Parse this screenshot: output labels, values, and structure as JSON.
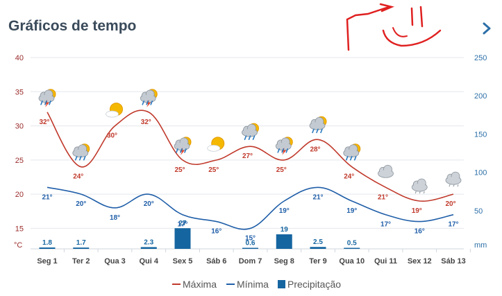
{
  "header": {
    "title": "Gráficos de tempo",
    "next_icon": "chevron-right-icon"
  },
  "colors": {
    "max": "#c0392b",
    "min": "#1f5ea8",
    "precip": "#1565a0",
    "axis_left": "#9b2b2b",
    "axis_right": "#2c6fa8",
    "grid": "#e3e7ec",
    "scribble": "#e02020"
  },
  "chart_data": {
    "type": "line",
    "x": [
      "Seg 1",
      "Ter 2",
      "Qua 3",
      "Qui 4",
      "Sex 5",
      "Sáb 6",
      "Dom 7",
      "Seg 8",
      "Ter 9",
      "Qua 10",
      "Qui 11",
      "Sex 12",
      "Sáb 13"
    ],
    "y_left": {
      "label": "°C",
      "ticks": [
        40,
        35,
        30,
        25,
        20,
        15
      ],
      "range": [
        12,
        40
      ]
    },
    "y_right": {
      "label": "mm",
      "ticks": [
        250,
        200,
        150,
        100,
        50
      ],
      "range": [
        0,
        250
      ]
    },
    "series": [
      {
        "name": "Máxima",
        "axis": "left",
        "values": [
          32,
          24,
          30,
          32,
          25,
          25,
          27,
          25,
          28,
          24,
          21,
          19,
          20
        ],
        "labels": [
          "32°",
          "24°",
          "30°",
          "32°",
          "25°",
          "25°",
          "27°",
          "25°",
          "28°",
          "24°",
          "21°",
          "19°",
          "20°"
        ]
      },
      {
        "name": "Mínima",
        "axis": "left",
        "values": [
          21,
          20,
          18,
          20,
          17,
          16,
          15,
          19,
          21,
          19,
          17,
          16,
          17
        ],
        "labels": [
          "21°",
          "20°",
          "18°",
          "20°",
          "17°",
          "16°",
          "15°",
          "19°",
          "21°",
          "19°",
          "17°",
          "16°",
          "17°"
        ]
      },
      {
        "name": "Precipitação",
        "axis": "right",
        "type": "bar",
        "values": [
          1.8,
          1.7,
          0,
          2.3,
          27,
          0,
          0.6,
          19,
          2.5,
          0.5,
          0,
          0,
          0
        ],
        "labels": [
          "1.8",
          "1.7",
          "",
          "2.3",
          "27",
          "",
          "0.6",
          "19",
          "2.5",
          "0.5",
          "",
          "",
          ""
        ]
      }
    ],
    "weather_icons": [
      "storm-sun",
      "rain-sun",
      "sun-cloud",
      "storm-sun",
      "storm-sun",
      "sun-cloud",
      "rain-sun",
      "storm-sun",
      "rain-sun",
      "rain-sun",
      "cloud",
      "cloud-rain",
      "cloud-rain"
    ],
    "legend": {
      "position": "bottom-center"
    },
    "grid": true
  }
}
